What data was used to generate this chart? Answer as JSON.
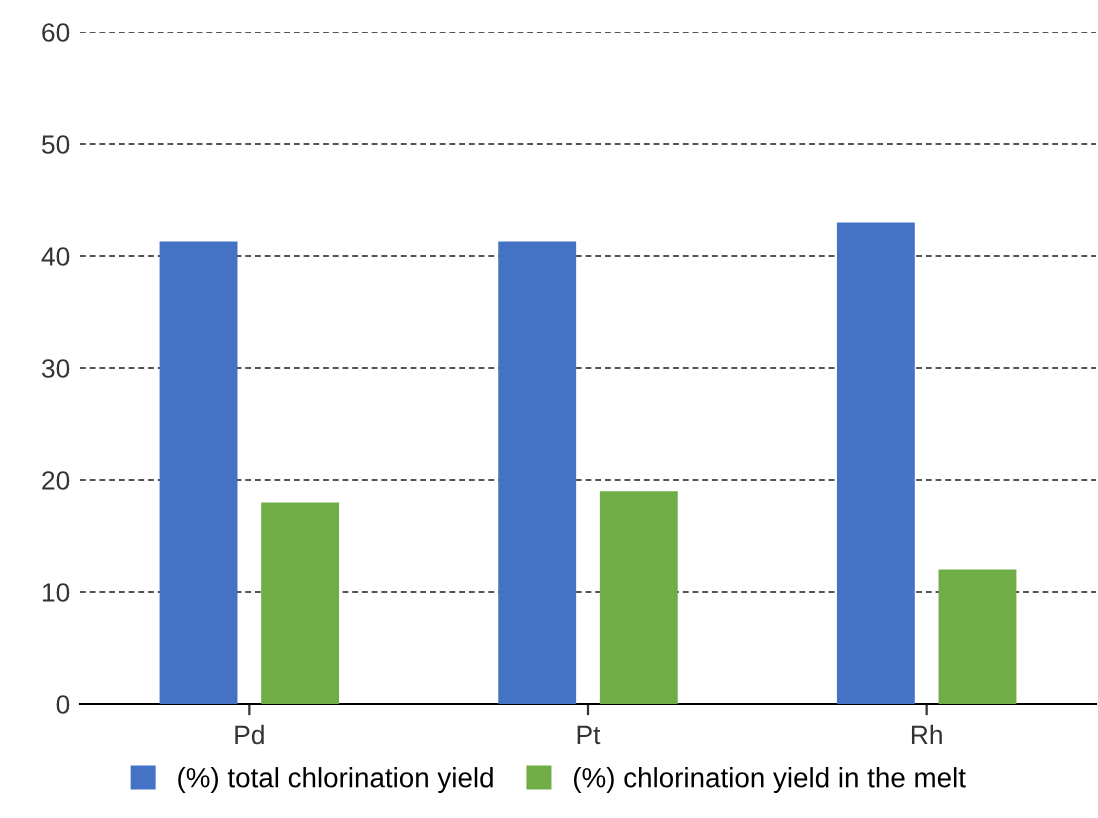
{
  "chart_data": {
    "type": "bar",
    "categories": [
      "Pd",
      "Pt",
      "Rh"
    ],
    "series": [
      {
        "name": "(%) total chlorination yield",
        "color": "#4472c4",
        "values": [
          41.3,
          41.3,
          43
        ]
      },
      {
        "name": "(%) chlorination yield in the melt",
        "color": "#70ad47",
        "values": [
          18,
          19,
          12
        ]
      }
    ],
    "ylim": [
      0,
      60
    ],
    "yticks": [
      0,
      10,
      20,
      30,
      40,
      50,
      60
    ],
    "grid": "y",
    "legend": "bottom"
  }
}
